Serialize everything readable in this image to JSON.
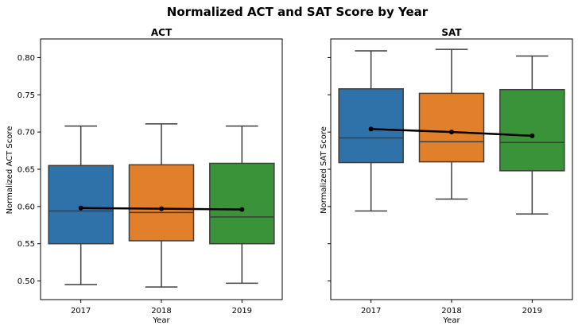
{
  "figure_title": "Normalized ACT and SAT Score by Year",
  "colors": [
    "#2f72a9",
    "#e27f2b",
    "#3a9239"
  ],
  "chart_data": [
    {
      "type": "box",
      "title": "ACT",
      "xlabel": "Year",
      "ylabel": "Normalized ACT Score",
      "categories": [
        "2017",
        "2018",
        "2019"
      ],
      "ylim": [
        0.475,
        0.825
      ],
      "yticks": [
        0.5,
        0.55,
        0.6,
        0.65,
        0.7,
        0.75,
        0.8
      ],
      "ytick_labels": [
        "0.50",
        "0.55",
        "0.60",
        "0.65",
        "0.70",
        "0.75",
        "0.80"
      ],
      "show_ytick_labels": true,
      "boxes": [
        {
          "whisker_low": 0.495,
          "q1": 0.55,
          "median": 0.594,
          "q3": 0.655,
          "whisker_high": 0.708
        },
        {
          "whisker_low": 0.492,
          "q1": 0.554,
          "median": 0.592,
          "q3": 0.656,
          "whisker_high": 0.711
        },
        {
          "whisker_low": 0.497,
          "q1": 0.55,
          "median": 0.586,
          "q3": 0.658,
          "whisker_high": 0.708
        }
      ],
      "mean_line": [
        0.598,
        0.597,
        0.596
      ],
      "grid": false
    },
    {
      "type": "box",
      "title": "SAT",
      "xlabel": "Year",
      "ylabel": "Normalized SAT Score",
      "categories": [
        "2017",
        "2018",
        "2019"
      ],
      "ylim": [
        0.475,
        0.825
      ],
      "yticks": [
        0.5,
        0.55,
        0.6,
        0.65,
        0.7,
        0.75,
        0.8
      ],
      "ytick_labels": [
        "",
        "",
        "",
        "",
        "",
        "",
        ""
      ],
      "show_ytick_labels": false,
      "boxes": [
        {
          "whisker_low": 0.594,
          "q1": 0.659,
          "median": 0.692,
          "q3": 0.758,
          "whisker_high": 0.809
        },
        {
          "whisker_low": 0.61,
          "q1": 0.66,
          "median": 0.687,
          "q3": 0.752,
          "whisker_high": 0.811
        },
        {
          "whisker_low": 0.59,
          "q1": 0.648,
          "median": 0.686,
          "q3": 0.757,
          "whisker_high": 0.802
        }
      ],
      "mean_line": [
        0.704,
        0.7,
        0.695
      ],
      "grid": false
    }
  ]
}
